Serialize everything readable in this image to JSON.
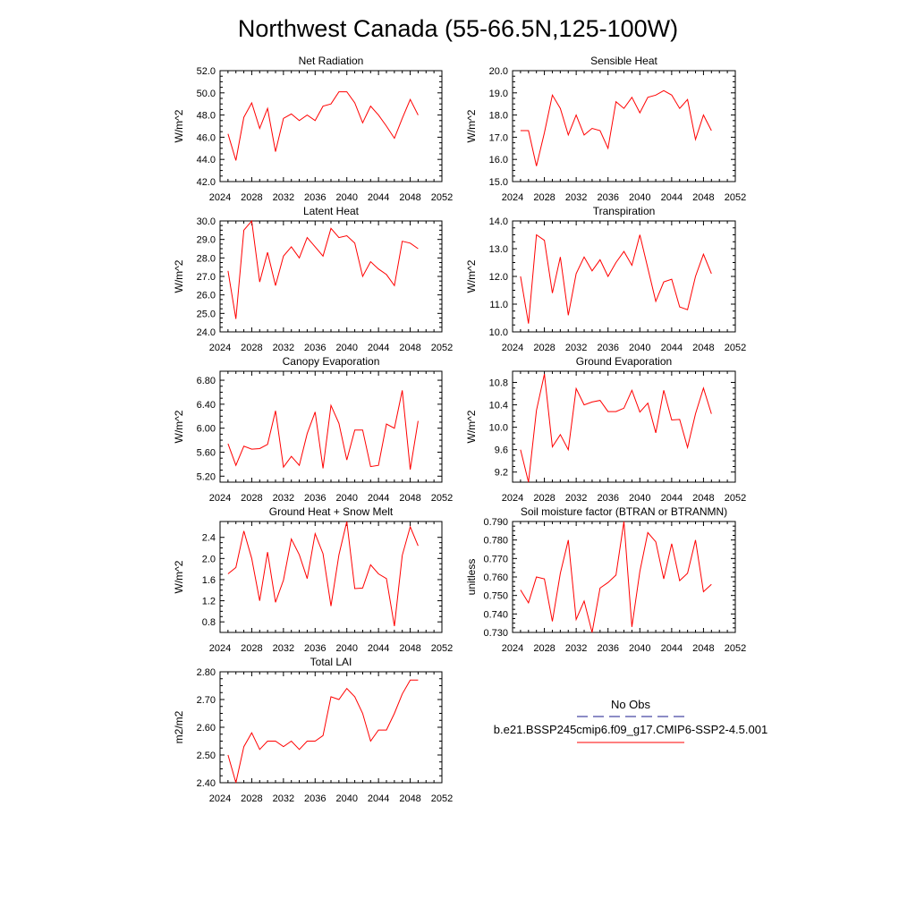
{
  "title": "Northwest Canada (55-66.5N,125-100W)",
  "legend": {
    "obs_label": "No Obs",
    "obs_color": "#1a1a8c",
    "model_label": "b.e21.BSSP245cmip6.f09_g17.CMIP6-SSP2-4.5.001",
    "model_color": "#ff0000"
  },
  "chart_data": [
    {
      "type": "line",
      "title": "Net Radiation",
      "ylabel": "W/m^2",
      "xlim": [
        2024,
        2052
      ],
      "xticks": [
        "2024",
        "2028",
        "2032",
        "2036",
        "2040",
        "2044",
        "2048",
        "2052"
      ],
      "ylim": [
        42,
        52
      ],
      "yticks": [
        "42.0",
        "44.0",
        "46.0",
        "48.0",
        "50.0",
        "52.0"
      ],
      "x": [
        2025,
        2026,
        2027,
        2028,
        2029,
        2030,
        2031,
        2032,
        2033,
        2034,
        2035,
        2036,
        2037,
        2038,
        2039,
        2040,
        2041,
        2042,
        2043,
        2044,
        2045,
        2046,
        2047,
        2048,
        2049
      ],
      "series": [
        {
          "values": [
            46.3,
            43.9,
            47.8,
            49.1,
            46.8,
            48.6,
            44.7,
            47.7,
            48.1,
            47.5,
            48.0,
            47.5,
            48.8,
            49.0,
            50.1,
            50.1,
            49.1,
            47.3,
            48.8,
            48.0,
            47.0,
            45.9,
            47.7,
            49.4,
            48.0
          ]
        }
      ]
    },
    {
      "type": "line",
      "title": "Sensible Heat",
      "ylabel": "W/m^2",
      "xlim": [
        2024,
        2052
      ],
      "xticks": [
        "2024",
        "2028",
        "2032",
        "2036",
        "2040",
        "2044",
        "2048",
        "2052"
      ],
      "ylim": [
        15,
        20
      ],
      "yticks": [
        "15.0",
        "16.0",
        "17.0",
        "18.0",
        "19.0",
        "20.0"
      ],
      "x": [
        2025,
        2026,
        2027,
        2028,
        2029,
        2030,
        2031,
        2032,
        2033,
        2034,
        2035,
        2036,
        2037,
        2038,
        2039,
        2040,
        2041,
        2042,
        2043,
        2044,
        2045,
        2046,
        2047,
        2048,
        2049
      ],
      "series": [
        {
          "values": [
            17.3,
            17.3,
            15.7,
            17.2,
            18.9,
            18.3,
            17.1,
            18.0,
            17.1,
            17.4,
            17.3,
            16.5,
            18.6,
            18.3,
            18.8,
            18.1,
            18.8,
            18.9,
            19.1,
            18.9,
            18.3,
            18.7,
            16.9,
            18.0,
            17.3
          ]
        }
      ]
    },
    {
      "type": "line",
      "title": "Latent Heat",
      "ylabel": "W/m^2",
      "xlim": [
        2024,
        2052
      ],
      "xticks": [
        "2024",
        "2028",
        "2032",
        "2036",
        "2040",
        "2044",
        "2048",
        "2052"
      ],
      "ylim": [
        24,
        30
      ],
      "yticks": [
        "24.0",
        "25.0",
        "26.0",
        "27.0",
        "28.0",
        "29.0",
        "30.0"
      ],
      "x": [
        2025,
        2026,
        2027,
        2028,
        2029,
        2030,
        2031,
        2032,
        2033,
        2034,
        2035,
        2036,
        2037,
        2038,
        2039,
        2040,
        2041,
        2042,
        2043,
        2044,
        2045,
        2046,
        2047,
        2048,
        2049
      ],
      "series": [
        {
          "values": [
            27.3,
            24.7,
            29.5,
            30.0,
            26.7,
            28.3,
            26.5,
            28.1,
            28.6,
            28.0,
            29.1,
            28.6,
            28.1,
            29.6,
            29.1,
            29.2,
            28.8,
            27.0,
            27.8,
            27.4,
            27.1,
            26.5,
            28.9,
            28.8,
            28.5
          ]
        }
      ]
    },
    {
      "type": "line",
      "title": "Transpiration",
      "ylabel": "W/m^2",
      "xlim": [
        2024,
        2052
      ],
      "xticks": [
        "2024",
        "2028",
        "2032",
        "2036",
        "2040",
        "2044",
        "2048",
        "2052"
      ],
      "ylim": [
        10,
        14
      ],
      "yticks": [
        "10.0",
        "11.0",
        "12.0",
        "13.0",
        "14.0"
      ],
      "x": [
        2025,
        2026,
        2027,
        2028,
        2029,
        2030,
        2031,
        2032,
        2033,
        2034,
        2035,
        2036,
        2037,
        2038,
        2039,
        2040,
        2041,
        2042,
        2043,
        2044,
        2045,
        2046,
        2047,
        2048,
        2049
      ],
      "series": [
        {
          "values": [
            12.0,
            10.3,
            13.5,
            13.3,
            11.4,
            12.7,
            10.6,
            12.1,
            12.7,
            12.2,
            12.6,
            12.0,
            12.5,
            12.9,
            12.4,
            13.5,
            12.3,
            11.1,
            11.8,
            11.9,
            10.9,
            10.8,
            12.0,
            12.8,
            12.1
          ]
        }
      ]
    },
    {
      "type": "line",
      "title": "Canopy Evaporation",
      "ylabel": "W/m^2",
      "xlim": [
        2024,
        2052
      ],
      "xticks": [
        "2024",
        "2028",
        "2032",
        "2036",
        "2040",
        "2044",
        "2048",
        "2052"
      ],
      "ylim": [
        5.1,
        6.95
      ],
      "yticks": [
        "5.20",
        "5.60",
        "6.00",
        "6.40",
        "6.80"
      ],
      "x": [
        2025,
        2026,
        2027,
        2028,
        2029,
        2030,
        2031,
        2032,
        2033,
        2034,
        2035,
        2036,
        2037,
        2038,
        2039,
        2040,
        2041,
        2042,
        2043,
        2044,
        2045,
        2046,
        2047,
        2048,
        2049
      ],
      "series": [
        {
          "values": [
            5.74,
            5.38,
            5.7,
            5.65,
            5.66,
            5.73,
            6.29,
            5.35,
            5.53,
            5.38,
            5.91,
            6.27,
            5.33,
            6.38,
            6.08,
            5.47,
            5.97,
            5.97,
            5.36,
            5.38,
            6.07,
            6.0,
            6.63,
            5.31,
            6.12
          ]
        }
      ]
    },
    {
      "type": "line",
      "title": "Ground Evaporation",
      "ylabel": "W/m^2",
      "xlim": [
        2024,
        2052
      ],
      "xticks": [
        "2024",
        "2028",
        "2032",
        "2036",
        "2040",
        "2044",
        "2048",
        "2052"
      ],
      "ylim": [
        9.02,
        11.0
      ],
      "yticks": [
        "9.2",
        "9.6",
        "10.0",
        "10.4",
        "10.8"
      ],
      "x": [
        2025,
        2026,
        2027,
        2028,
        2029,
        2030,
        2031,
        2032,
        2033,
        2034,
        2035,
        2036,
        2037,
        2038,
        2039,
        2040,
        2041,
        2042,
        2043,
        2044,
        2045,
        2046,
        2047,
        2048,
        2049
      ],
      "series": [
        {
          "values": [
            9.6,
            9.02,
            10.3,
            10.95,
            9.65,
            9.87,
            9.6,
            10.69,
            10.4,
            10.45,
            10.48,
            10.28,
            10.28,
            10.34,
            10.66,
            10.27,
            10.43,
            9.9,
            10.66,
            10.13,
            10.14,
            9.64,
            10.24,
            10.7,
            10.24
          ]
        }
      ]
    },
    {
      "type": "line",
      "title": "Ground Heat + Snow Melt",
      "ylabel": "W/m^2",
      "xlim": [
        2024,
        2052
      ],
      "xticks": [
        "2024",
        "2028",
        "2032",
        "2036",
        "2040",
        "2044",
        "2048",
        "2052"
      ],
      "ylim": [
        0.6,
        2.7
      ],
      "yticks": [
        "0.8",
        "1.2",
        "1.6",
        "2.0",
        "2.4"
      ],
      "x": [
        2025,
        2026,
        2027,
        2028,
        2029,
        2030,
        2031,
        2032,
        2033,
        2034,
        2035,
        2036,
        2037,
        2038,
        2039,
        2040,
        2041,
        2042,
        2043,
        2044,
        2045,
        2046,
        2047,
        2048,
        2049
      ],
      "series": [
        {
          "values": [
            1.71,
            1.83,
            2.52,
            2.0,
            1.2,
            2.12,
            1.17,
            1.59,
            2.37,
            2.07,
            1.62,
            2.47,
            2.09,
            1.1,
            2.07,
            2.7,
            1.43,
            1.44,
            1.88,
            1.71,
            1.62,
            0.72,
            2.06,
            2.6,
            2.24
          ]
        }
      ]
    },
    {
      "type": "line",
      "title": "Soil moisture factor (BTRAN or BTRANMN)",
      "ylabel": "unitless",
      "xlim": [
        2024,
        2052
      ],
      "xticks": [
        "2024",
        "2028",
        "2032",
        "2036",
        "2040",
        "2044",
        "2048",
        "2052"
      ],
      "ylim": [
        0.73,
        0.79
      ],
      "yticks": [
        "0.730",
        "0.740",
        "0.750",
        "0.760",
        "0.770",
        "0.780",
        "0.790"
      ],
      "x": [
        2025,
        2026,
        2027,
        2028,
        2029,
        2030,
        2031,
        2032,
        2033,
        2034,
        2035,
        2036,
        2037,
        2038,
        2039,
        2040,
        2041,
        2042,
        2043,
        2044,
        2045,
        2046,
        2047,
        2048,
        2049
      ],
      "series": [
        {
          "values": [
            0.753,
            0.746,
            0.76,
            0.759,
            0.736,
            0.762,
            0.78,
            0.737,
            0.747,
            0.73,
            0.754,
            0.757,
            0.761,
            0.79,
            0.733,
            0.763,
            0.784,
            0.779,
            0.759,
            0.778,
            0.758,
            0.762,
            0.78,
            0.752,
            0.756
          ]
        }
      ]
    },
    {
      "type": "line",
      "title": "Total LAI",
      "ylabel": "m2/m2",
      "xlim": [
        2024,
        2052
      ],
      "xticks": [
        "2024",
        "2028",
        "2032",
        "2036",
        "2040",
        "2044",
        "2048",
        "2052"
      ],
      "ylim": [
        2.4,
        2.8
      ],
      "yticks": [
        "2.40",
        "2.50",
        "2.60",
        "2.70",
        "2.80"
      ],
      "x": [
        2025,
        2026,
        2027,
        2028,
        2029,
        2030,
        2031,
        2032,
        2033,
        2034,
        2035,
        2036,
        2037,
        2038,
        2039,
        2040,
        2041,
        2042,
        2043,
        2044,
        2045,
        2046,
        2047,
        2048,
        2049
      ],
      "series": [
        {
          "values": [
            2.5,
            2.4,
            2.53,
            2.58,
            2.52,
            2.55,
            2.55,
            2.53,
            2.55,
            2.52,
            2.55,
            2.55,
            2.57,
            2.71,
            2.7,
            2.74,
            2.71,
            2.65,
            2.55,
            2.59,
            2.59,
            2.65,
            2.72,
            2.77,
            2.77
          ]
        }
      ]
    }
  ]
}
